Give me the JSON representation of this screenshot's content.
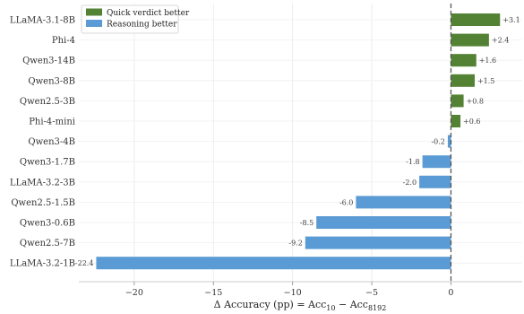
{
  "chart_data": {
    "type": "bar",
    "orientation": "horizontal",
    "categories": [
      "LLaMA-3.1-8B",
      "Phi-4",
      "Qwen3-14B",
      "Qwen3-8B",
      "Qwen2.5-3B",
      "Phi-4-mini",
      "Qwen3-4B",
      "Qwen3-1.7B",
      "LLaMA-3.2-3B",
      "Qwen2.5-1.5B",
      "Qwen3-0.6B",
      "Qwen2.5-7B",
      "LLaMA-3.2-1B"
    ],
    "values": [
      3.1,
      2.4,
      1.6,
      1.5,
      0.8,
      0.6,
      -0.2,
      -1.8,
      -2.0,
      -6.0,
      -8.5,
      -9.2,
      -22.4
    ],
    "value_labels": [
      "+3.1",
      "+2.4",
      "+1.6",
      "+1.5",
      "+0.8",
      "+0.6",
      "-0.2",
      "-1.8",
      "-2.0",
      "-6.0",
      "-8.5",
      "-9.2",
      "-22.4"
    ],
    "xlim": [
      -23.5,
      4.5
    ],
    "xticks": [
      -20,
      -15,
      -10,
      -5,
      0
    ],
    "xtick_labels": [
      "−20",
      "−15",
      "−10",
      "−5",
      "0"
    ],
    "xlabel": {
      "prefix": "Δ Accuracy (pp) = Acc",
      "sub1": "10",
      "minus": " − Acc",
      "sub2": "8192"
    },
    "grid": true,
    "zero_line": "dashed",
    "legend": {
      "placement": "top-left",
      "entries": [
        {
          "label": "Quick verdict better",
          "color": "#548235"
        },
        {
          "label": "Reasoning better",
          "color": "#5b9bd5"
        }
      ]
    },
    "colors": {
      "positive": "#548235",
      "negative": "#5b9bd5"
    }
  }
}
